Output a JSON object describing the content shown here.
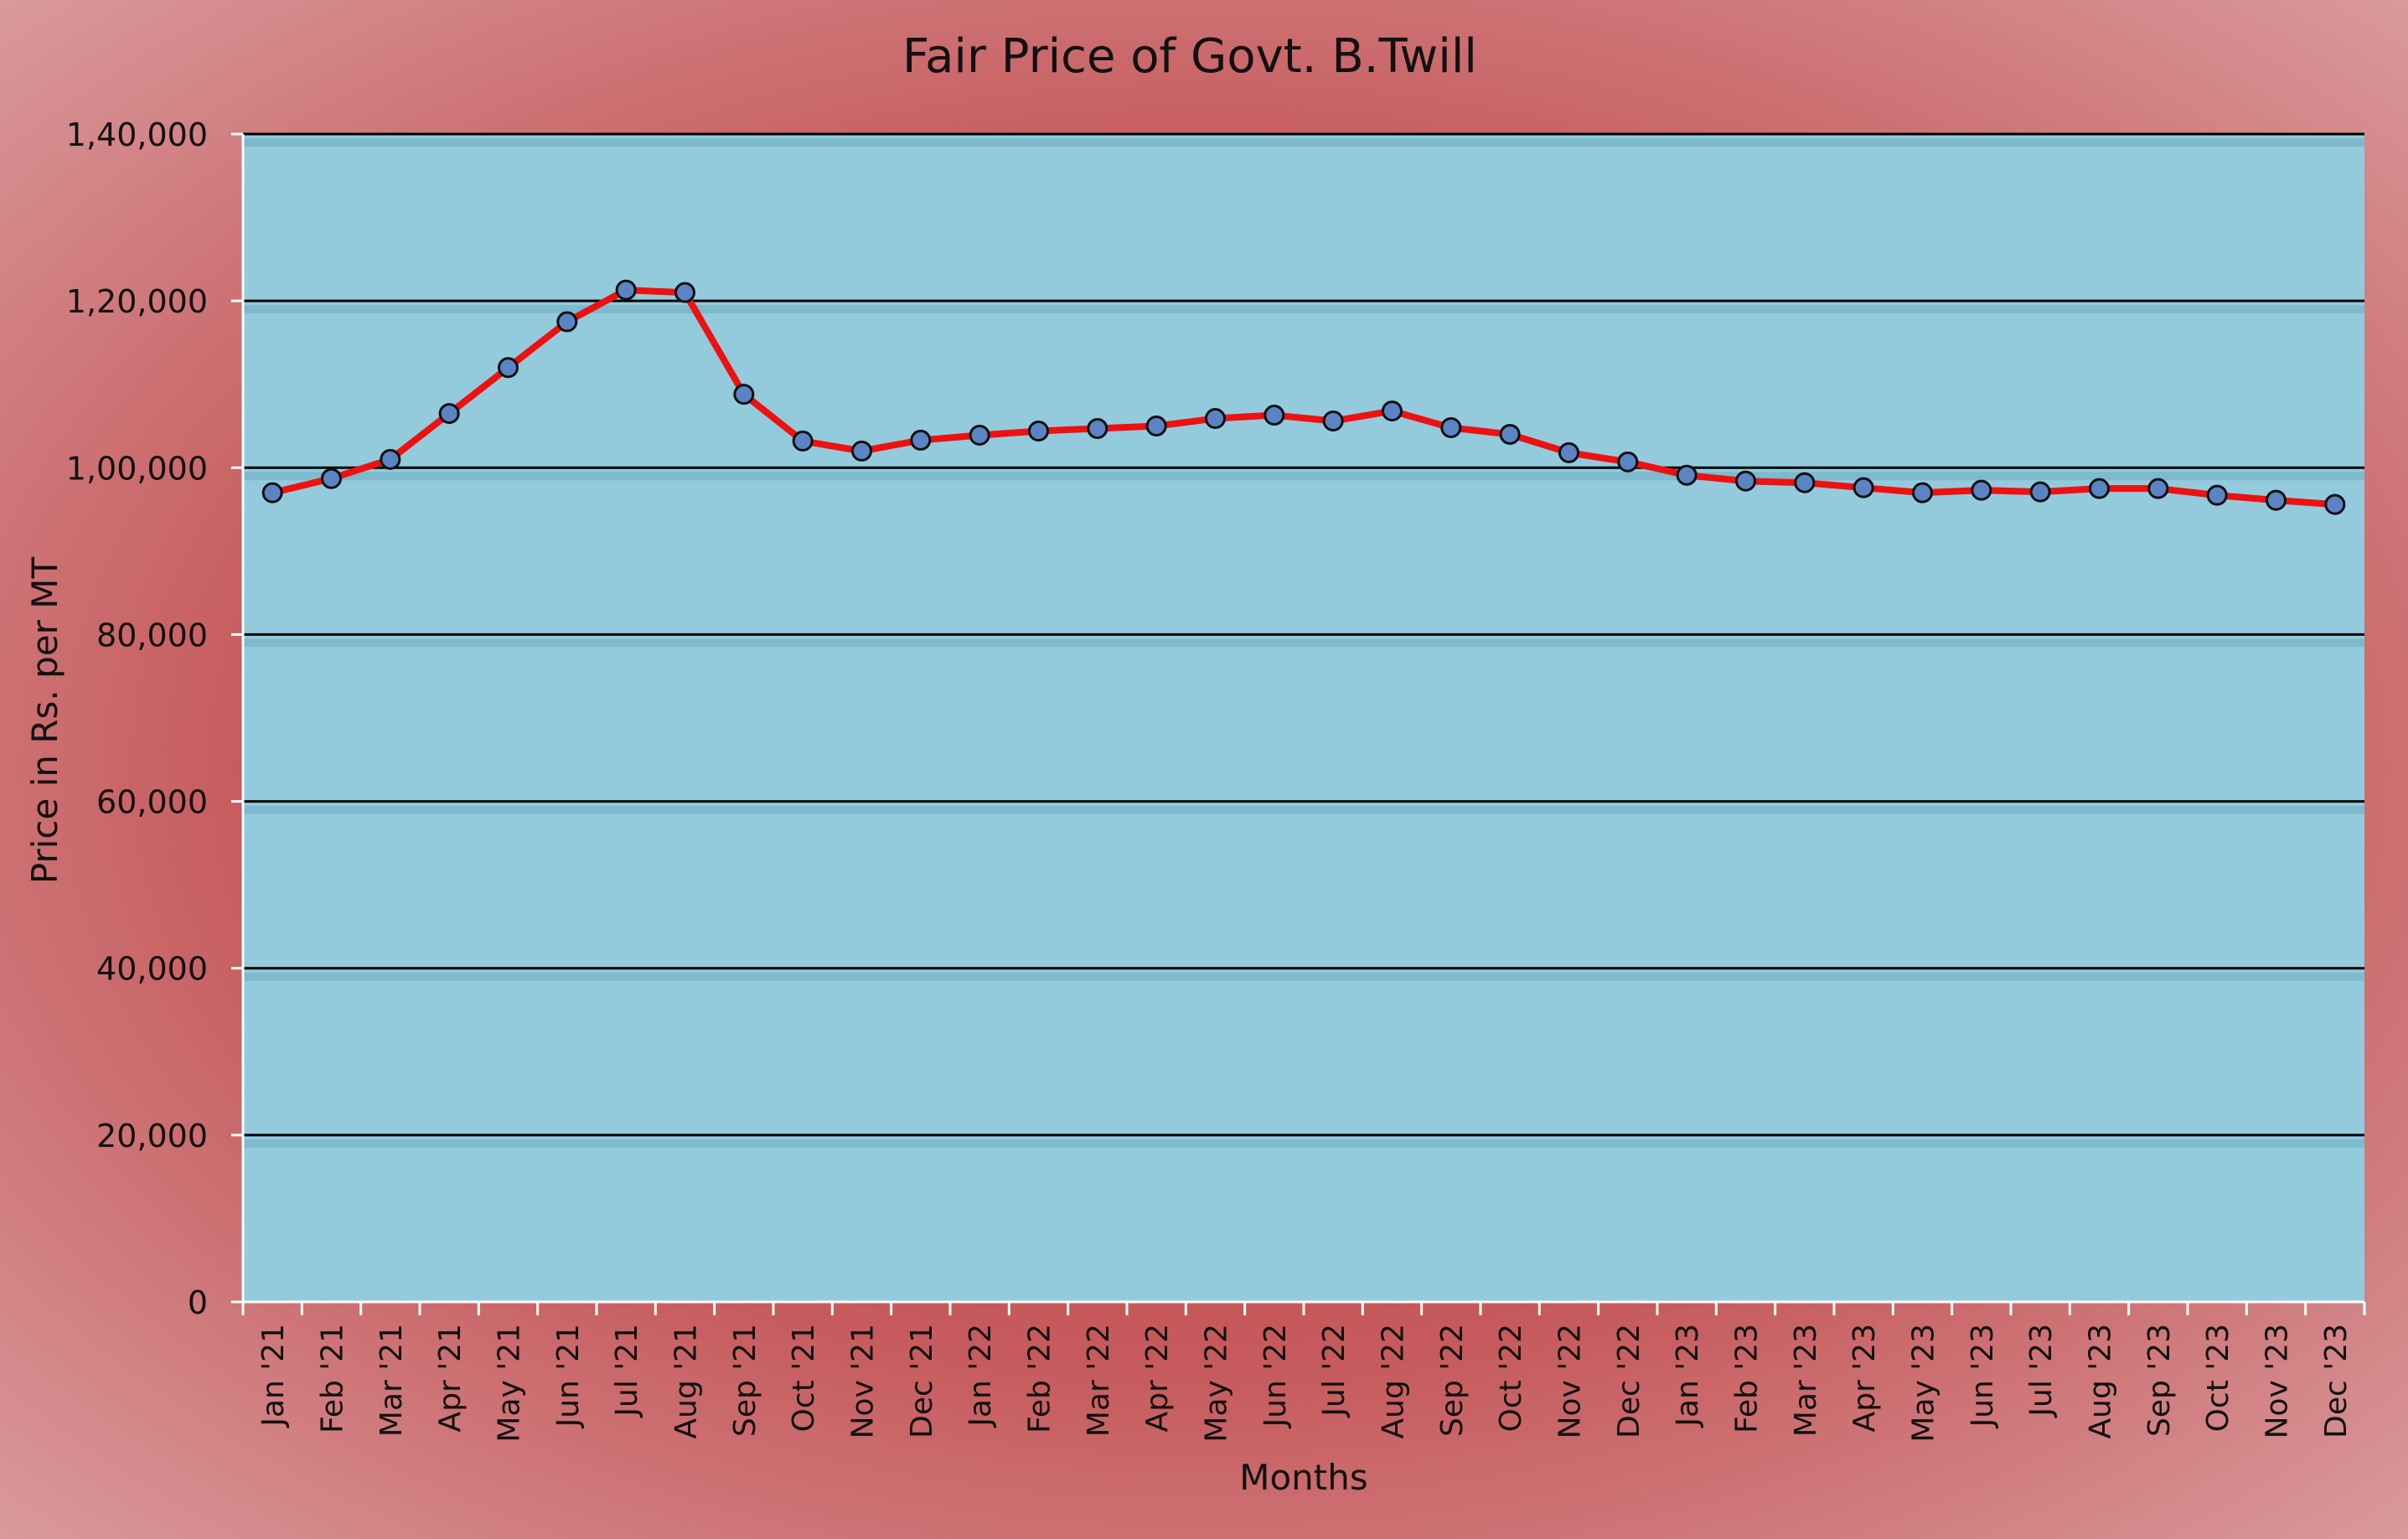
{
  "chart_data": {
    "type": "line",
    "title": "Fair Price of Govt. B.Twill",
    "xlabel": "Months",
    "ylabel": "Price in Rs. per MT",
    "ylim": [
      0,
      140000
    ],
    "yticks": [
      0,
      20000,
      40000,
      60000,
      80000,
      100000,
      120000,
      140000
    ],
    "ytick_labels": [
      "0",
      "20,000",
      "40,000",
      "60,000",
      "80,000",
      "1,00,000",
      "1,20,000",
      "1,40,000"
    ],
    "grid": "horizontal",
    "legend": "none",
    "categories": [
      "Jan '21",
      "Feb '21",
      "Mar '21",
      "Apr '21",
      "May '21",
      "Jun '21",
      "Jul '21",
      "Aug '21",
      "Sep '21",
      "Oct '21",
      "Nov '21",
      "Dec '21",
      "Jan '22",
      "Feb '22",
      "Mar '22",
      "Apr '22",
      "May '22",
      "Jun '22",
      "Jul '22",
      "Aug '22",
      "Sep '22",
      "Oct '22",
      "Nov '22",
      "Dec '22",
      "Jan '23",
      "Feb '23",
      "Mar '23",
      "Apr '23",
      "May '23",
      "Jun '23",
      "Jul '23",
      "Aug '23",
      "Sep '23",
      "Oct '23",
      "Nov '23",
      "Dec '23"
    ],
    "series": [
      {
        "values": [
          97000,
          98700,
          101000,
          106500,
          112000,
          117500,
          121300,
          121000,
          108800,
          103200,
          102000,
          103300,
          103900,
          104400,
          104700,
          105000,
          105900,
          106300,
          105600,
          106800,
          104800,
          104000,
          101800,
          100700,
          99100,
          98400,
          98200,
          97600,
          97000,
          97300,
          97100,
          97500,
          97500,
          96700,
          96100,
          95600
        ],
        "line_color": "#ee1111",
        "marker_color": "#5b84c4"
      }
    ],
    "plot_background": "#93cbdd",
    "frame_background": "#c0484a"
  }
}
